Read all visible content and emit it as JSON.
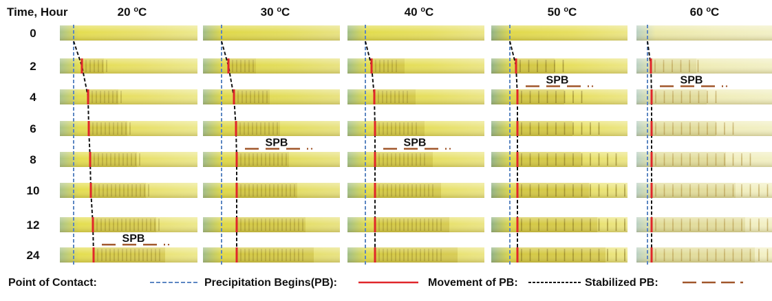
{
  "header": {
    "time_label": "Time, Hour"
  },
  "temperatures": [
    {
      "value": "20",
      "unit": "oC",
      "pb_hours_px_shift": [
        null,
        0,
        1,
        1,
        1,
        1,
        1,
        1
      ],
      "spb_row": 7
    },
    {
      "value": "30",
      "unit": "oC",
      "spb_row": 4
    },
    {
      "value": "40",
      "unit": "oC",
      "spb_row": 4
    },
    {
      "value": "50",
      "unit": "oC",
      "spb_row": 2
    },
    {
      "value": "60",
      "unit": "oC",
      "spb_row": 2
    }
  ],
  "time_points": [
    "0",
    "2",
    "4",
    "6",
    "8",
    "10",
    "12",
    "24"
  ],
  "spb_label": "SPB",
  "legend": {
    "point_of_contact": "Point of Contact:",
    "precipitation_begins": "Precipitation Begins(PB):",
    "movement_of_pb": "Movement of PB:",
    "stabilized_pb": "Stabilized PB:"
  },
  "colors": {
    "point_of_contact": "#5b86c2",
    "precipitation_begins": "#e0262a",
    "movement_of_pb": "#111111",
    "stabilized_pb": "#a0562a",
    "tube_yellow": "#e6dd55",
    "tube_dark": "#b5a324",
    "tube_contact_green": "#a7c08a"
  }
}
